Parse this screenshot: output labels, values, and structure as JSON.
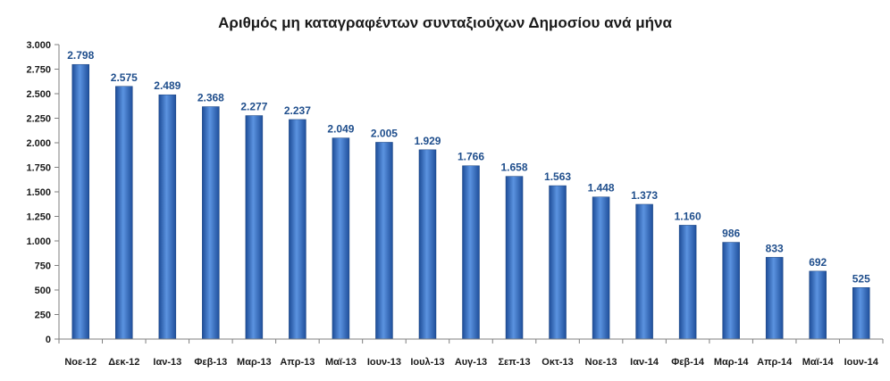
{
  "chart_data": {
    "type": "bar",
    "title": "Αριθμός μη καταγραφέντων συνταξιούχων Δημοσίου ανά μήνα",
    "xlabel": "",
    "ylabel": "",
    "categories": [
      "Νοε-12",
      "Δεκ-12",
      "Ιαν-13",
      "Φεβ-13",
      "Μαρ-13",
      "Απρ-13",
      "Μαϊ-13",
      "Ιουν-13",
      "Ιουλ-13",
      "Αυγ-13",
      "Σεπ-13",
      "Οκτ-13",
      "Νοε-13",
      "Ιαν-14",
      "Φεβ-14",
      "Μαρ-14",
      "Απρ-14",
      "Μαϊ-14",
      "Ιουν-14"
    ],
    "values": [
      2798,
      2575,
      2489,
      2368,
      2277,
      2237,
      2049,
      2005,
      1929,
      1766,
      1658,
      1563,
      1448,
      1373,
      1160,
      986,
      833,
      692,
      525
    ],
    "value_labels": [
      "2.798",
      "2.575",
      "2.489",
      "2.368",
      "2.277",
      "2.237",
      "2.049",
      "2.005",
      "1.929",
      "1.766",
      "1.658",
      "1.563",
      "1.448",
      "1.373",
      "1.160",
      "986",
      "833",
      "692",
      "525"
    ],
    "yticks": [
      0,
      250,
      500,
      750,
      1000,
      1250,
      1500,
      1750,
      2000,
      2250,
      2500,
      2750,
      3000
    ],
    "ytick_labels": [
      "0",
      "250",
      "500",
      "750",
      "1.000",
      "1.250",
      "1.500",
      "1.750",
      "2.000",
      "2.250",
      "2.500",
      "2.750",
      "3.000"
    ],
    "ylim": [
      0,
      3000
    ],
    "grid": false,
    "legend": "none",
    "bar_color": "#3f78c9"
  }
}
